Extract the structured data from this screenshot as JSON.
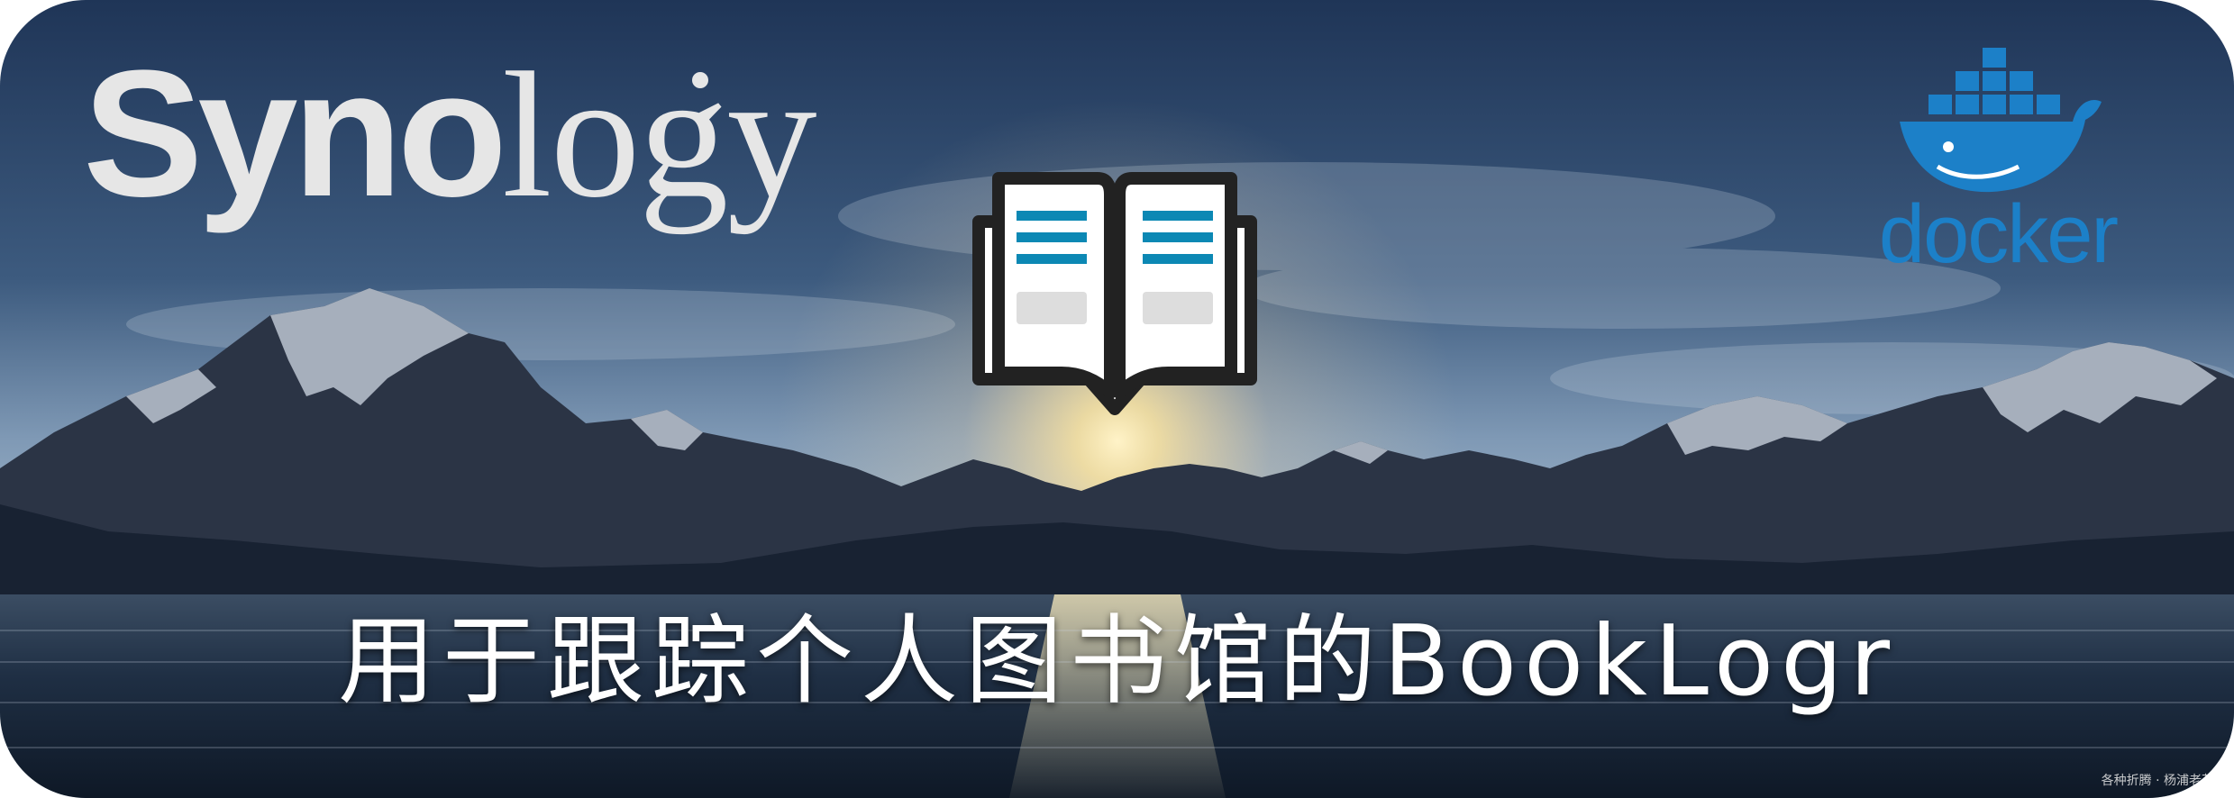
{
  "banner": {
    "brand_left": {
      "bold_part": "Syno",
      "light_part": "logy"
    },
    "brand_right": {
      "word": "docker",
      "icon": "docker-whale-icon"
    },
    "center_icon": "open-book-icon",
    "title": "用于跟踪个人图书馆的BookLogr",
    "watermark": "各种折腾 · 杨浦老苏"
  },
  "colors": {
    "sky_top": "#1f3557",
    "sky_horizon": "#a9bdcf",
    "sun": "#fff3c8",
    "water": "#142236",
    "synology_gray": "#e6e6e6",
    "docker_blue": "#1c80c8",
    "book_teal": "#0c88b4",
    "book_outline": "#222222"
  }
}
